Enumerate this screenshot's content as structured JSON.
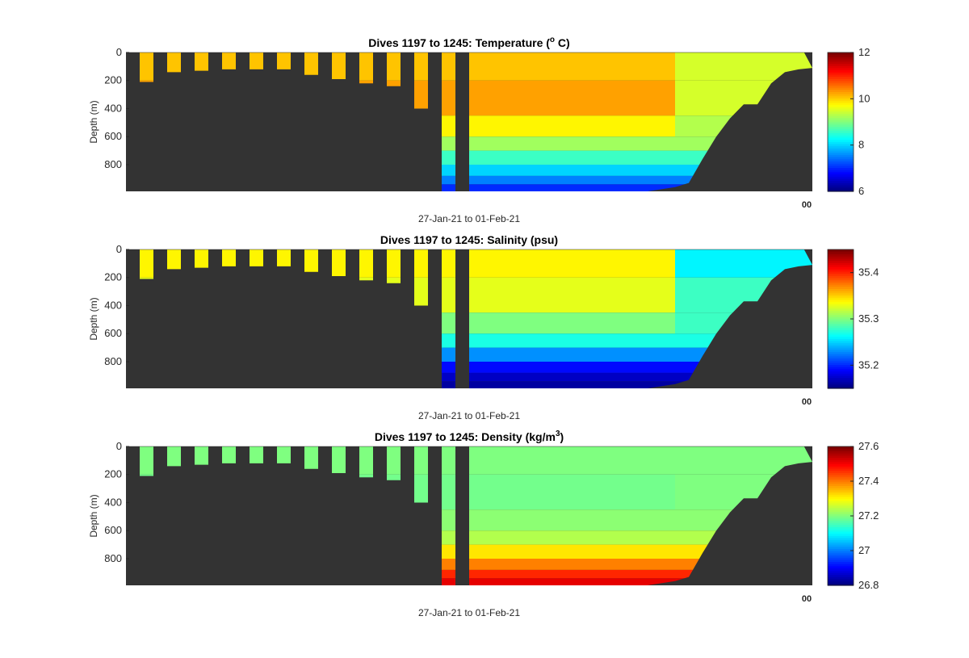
{
  "figure": {
    "background": "#ffffff",
    "land_color": "#333333"
  },
  "chart_data": [
    {
      "type": "heatmap",
      "title": "Dives 1197 to 1245: Temperature (",
      "title_super": "o",
      "title_suffix": " C)",
      "ylabel": "Depth (m)",
      "xlabel": "27-Jan-21 to 01-Feb-21",
      "x_tick_glitch": "00",
      "ylim": [
        0,
        990
      ],
      "y_ticks": [
        0,
        200,
        400,
        600,
        800
      ],
      "colormap": "jet",
      "clim": [
        6,
        12
      ],
      "colorbar_ticks": [
        "6",
        "8",
        "10",
        "12"
      ],
      "x_range": [
        0,
        250
      ],
      "profiles": [
        {
          "x": 5,
          "w": 5,
          "depth": 210
        },
        {
          "x": 15,
          "w": 5,
          "depth": 140
        },
        {
          "x": 25,
          "w": 5,
          "depth": 130
        },
        {
          "x": 35,
          "w": 5,
          "depth": 120
        },
        {
          "x": 45,
          "w": 5,
          "depth": 120
        },
        {
          "x": 55,
          "w": 5,
          "depth": 120
        },
        {
          "x": 65,
          "w": 5,
          "depth": 160
        },
        {
          "x": 75,
          "w": 5,
          "depth": 190
        },
        {
          "x": 85,
          "w": 5,
          "depth": 220
        },
        {
          "x": 95,
          "w": 5,
          "depth": 240
        },
        {
          "x": 105,
          "w": 5,
          "depth": 400
        },
        {
          "x": 115,
          "w": 5,
          "depth": 990
        },
        {
          "x": 125,
          "w": 122,
          "depth": 990
        }
      ],
      "bottom_profile": [
        [
          125,
          990
        ],
        [
          190,
          990
        ],
        [
          195,
          975
        ],
        [
          200,
          960
        ],
        [
          205,
          930
        ],
        [
          210,
          760
        ],
        [
          215,
          600
        ],
        [
          220,
          470
        ],
        [
          225,
          370
        ],
        [
          230,
          370
        ],
        [
          235,
          220
        ],
        [
          240,
          140
        ],
        [
          245,
          120
        ],
        [
          250,
          110
        ]
      ],
      "bands": [
        {
          "top": 0,
          "bottom": 200,
          "value": 10.1,
          "upper_value": 9.5
        },
        {
          "top": 200,
          "bottom": 450,
          "value": 10.3,
          "upper_value": 9.5
        },
        {
          "top": 450,
          "bottom": 600,
          "value": 9.8,
          "upper_value": 9.3
        },
        {
          "top": 600,
          "bottom": 700,
          "value": 9.2,
          "upper_value": 9.2
        },
        {
          "top": 700,
          "bottom": 800,
          "value": 8.6,
          "upper_value": 8.6
        },
        {
          "top": 800,
          "bottom": 880,
          "value": 8.0,
          "upper_value": 8.0
        },
        {
          "top": 880,
          "bottom": 940,
          "value": 7.5,
          "upper_value": 7.5
        },
        {
          "top": 940,
          "bottom": 990,
          "value": 7.0,
          "upper_value": 7.0
        }
      ]
    },
    {
      "type": "heatmap",
      "title": "Dives 1197 to 1245: Salinity (psu)",
      "title_super": "",
      "title_suffix": "",
      "ylabel": "Depth (m)",
      "xlabel": "27-Jan-21 to 01-Feb-21",
      "x_tick_glitch": "00",
      "ylim": [
        0,
        990
      ],
      "y_ticks": [
        0,
        200,
        400,
        600,
        800
      ],
      "colormap": "jet",
      "clim": [
        35.15,
        35.45
      ],
      "colorbar_ticks": [
        "35.2",
        "35.3",
        "35.4"
      ],
      "colorbar_tick_values": [
        35.2,
        35.3,
        35.4
      ],
      "x_range": [
        0,
        250
      ],
      "profiles": "same",
      "bands": [
        {
          "top": 0,
          "bottom": 200,
          "value": 35.34,
          "upper_value": 35.26
        },
        {
          "top": 200,
          "bottom": 450,
          "value": 35.33,
          "upper_value": 35.28
        },
        {
          "top": 450,
          "bottom": 600,
          "value": 35.3,
          "upper_value": 35.28
        },
        {
          "top": 600,
          "bottom": 700,
          "value": 35.27,
          "upper_value": 35.27
        },
        {
          "top": 700,
          "bottom": 800,
          "value": 35.23,
          "upper_value": 35.23
        },
        {
          "top": 800,
          "bottom": 880,
          "value": 35.19,
          "upper_value": 35.19
        },
        {
          "top": 880,
          "bottom": 940,
          "value": 35.17,
          "upper_value": 35.17
        },
        {
          "top": 940,
          "bottom": 990,
          "value": 35.16,
          "upper_value": 35.16
        }
      ]
    },
    {
      "type": "heatmap",
      "title": "Dives 1197 to 1245: Density (kg/m",
      "title_super": "3",
      "title_suffix": ")",
      "ylabel": "Depth (m)",
      "xlabel": "27-Jan-21 to 01-Feb-21",
      "x_tick_glitch": "00",
      "ylim": [
        0,
        990
      ],
      "y_ticks": [
        0,
        200,
        400,
        600,
        800
      ],
      "colormap": "jet",
      "clim": [
        26.8,
        27.6
      ],
      "colorbar_ticks": [
        "26.8",
        "27",
        "27.2",
        "27.4",
        "27.6"
      ],
      "colorbar_tick_values": [
        26.8,
        27.0,
        27.2,
        27.4,
        27.6
      ],
      "x_range": [
        0,
        250
      ],
      "profiles": "same",
      "bands": [
        {
          "top": 0,
          "bottom": 200,
          "value": 27.2,
          "upper_value": 27.2
        },
        {
          "top": 200,
          "bottom": 450,
          "value": 27.19,
          "upper_value": 27.2
        },
        {
          "top": 450,
          "bottom": 600,
          "value": 27.21,
          "upper_value": 27.21
        },
        {
          "top": 600,
          "bottom": 700,
          "value": 27.24,
          "upper_value": 27.24
        },
        {
          "top": 700,
          "bottom": 800,
          "value": 27.32,
          "upper_value": 27.32
        },
        {
          "top": 800,
          "bottom": 880,
          "value": 27.4,
          "upper_value": 27.4
        },
        {
          "top": 880,
          "bottom": 940,
          "value": 27.47,
          "upper_value": 27.47
        },
        {
          "top": 940,
          "bottom": 990,
          "value": 27.52,
          "upper_value": 27.52
        }
      ]
    }
  ]
}
